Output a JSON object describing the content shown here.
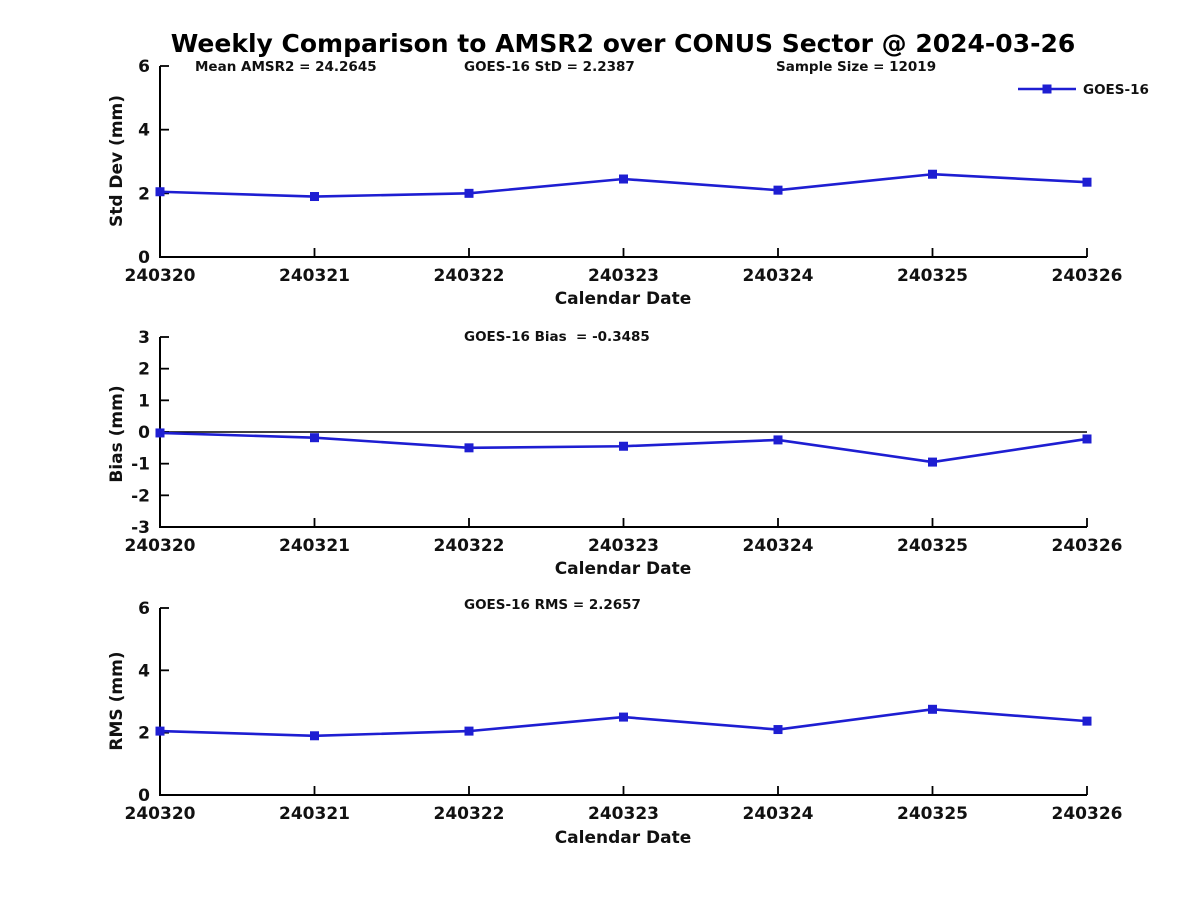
{
  "title": "Weekly Comparison to AMSR2 over CONUS Sector @ 2024-03-26",
  "dates": [
    "240320",
    "240321",
    "240322",
    "240323",
    "240324",
    "240325",
    "240326"
  ],
  "legend": {
    "label": "GOES-16",
    "color": "#1e1ed2",
    "marker": "square"
  },
  "chart_data": [
    {
      "type": "line",
      "x": [
        "240320",
        "240321",
        "240322",
        "240323",
        "240324",
        "240325",
        "240326"
      ],
      "series": [
        {
          "name": "GOES-16",
          "color": "#1e1ed2",
          "marker": "square",
          "values": [
            2.05,
            1.9,
            2.0,
            2.45,
            2.1,
            2.6,
            2.35
          ]
        }
      ],
      "annotations": [
        "Mean AMSR2 = 24.2645",
        "GOES-16 StD = 2.2387",
        "Sample Size = 12019"
      ],
      "xlabel": "Calendar Date",
      "ylabel": "Std Dev (mm)",
      "ylim": [
        0,
        6
      ],
      "yticks": [
        0,
        2,
        4,
        6
      ],
      "grid": false,
      "legend_visible": true,
      "legend_position": "top-right"
    },
    {
      "type": "line",
      "x": [
        "240320",
        "240321",
        "240322",
        "240323",
        "240324",
        "240325",
        "240326"
      ],
      "series": [
        {
          "name": "GOES-16",
          "color": "#1e1ed2",
          "marker": "square",
          "values": [
            -0.03,
            -0.18,
            -0.5,
            -0.45,
            -0.25,
            -0.95,
            -0.22
          ]
        }
      ],
      "annotations": [
        "GOES-16 Bias  = -0.3485"
      ],
      "xlabel": "Calendar Date",
      "ylabel": "Bias (mm)",
      "ylim": [
        -3,
        3
      ],
      "yticks": [
        -3,
        -2,
        -1,
        0,
        1,
        2,
        3
      ],
      "zero_line": true,
      "grid": false,
      "legend_visible": false
    },
    {
      "type": "line",
      "x": [
        "240320",
        "240321",
        "240322",
        "240323",
        "240324",
        "240325",
        "240326"
      ],
      "series": [
        {
          "name": "GOES-16",
          "color": "#1e1ed2",
          "marker": "square",
          "values": [
            2.05,
            1.9,
            2.05,
            2.5,
            2.1,
            2.75,
            2.37
          ]
        }
      ],
      "annotations": [
        "GOES-16 RMS = 2.2657"
      ],
      "xlabel": "Calendar Date",
      "ylabel": "RMS (mm)",
      "ylim": [
        0,
        6
      ],
      "yticks": [
        0,
        2,
        4,
        6
      ],
      "grid": false,
      "legend_visible": false
    }
  ]
}
